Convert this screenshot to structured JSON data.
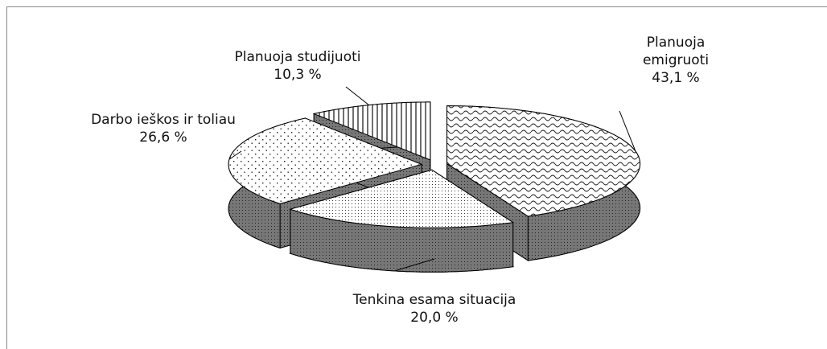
{
  "chart_data": {
    "type": "pie",
    "categories": [
      "Planuoja emigruoti",
      "Tenkina esama situacija",
      "Darbo ieškos ir toliau",
      "Planuoja studijuoti"
    ],
    "values": [
      43.1,
      20.0,
      26.6,
      10.3
    ],
    "value_labels": [
      "43,1 %",
      "20,0 %",
      "26,6 %",
      "10,3 %"
    ]
  }
}
